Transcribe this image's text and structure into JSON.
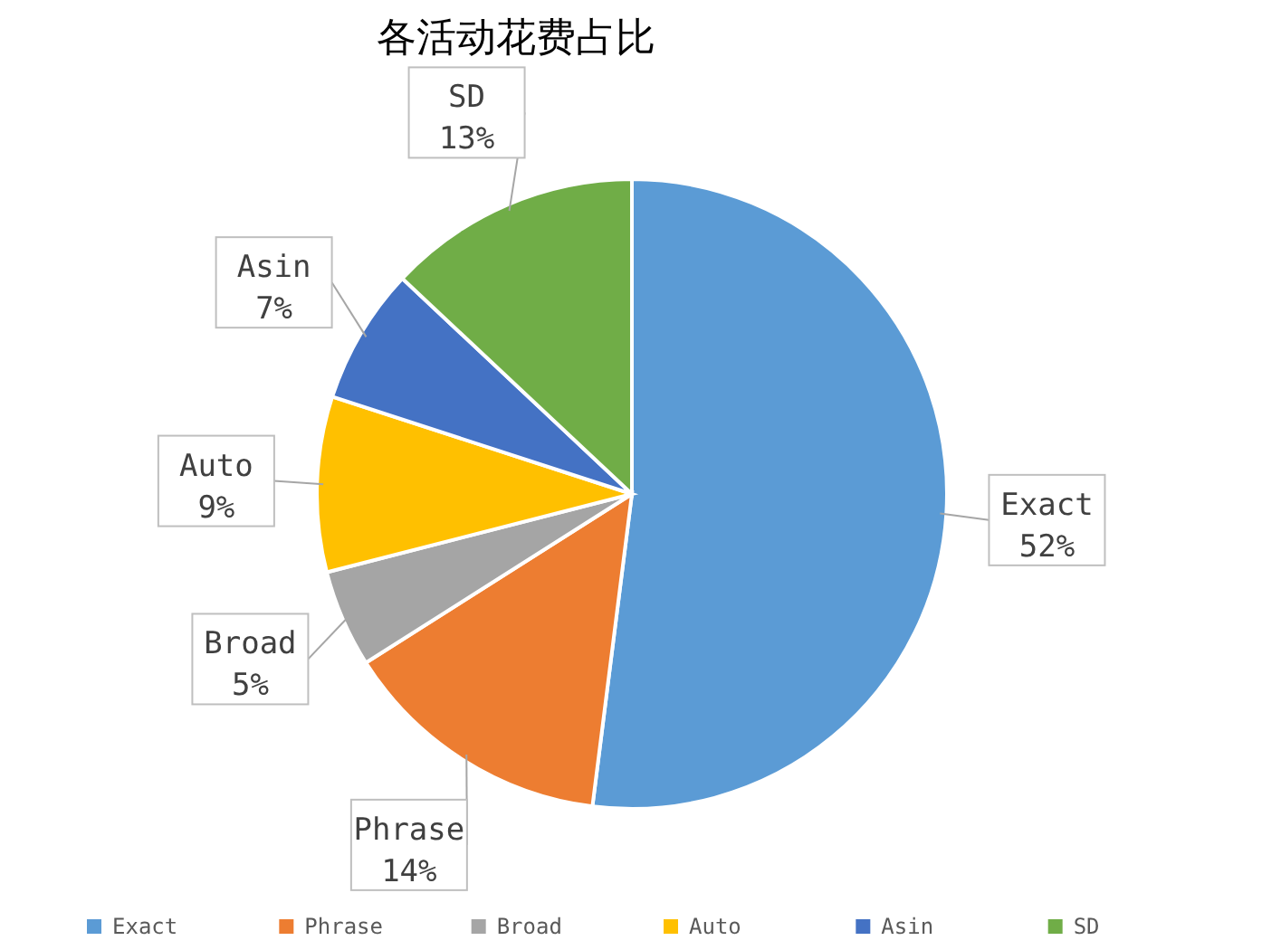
{
  "chart_data": {
    "type": "pie",
    "title": "各活动花费占比",
    "categories": [
      "Exact",
      "Phrase",
      "Broad",
      "Auto",
      "Asin",
      "SD"
    ],
    "values": [
      52,
      14,
      5,
      9,
      7,
      13
    ],
    "colors": [
      "#5b9bd5",
      "#ed7d31",
      "#a5a5a5",
      "#ffc000",
      "#4472c4",
      "#70ad47"
    ],
    "value_labels": [
      "52%",
      "14%",
      "5%",
      "9%",
      "7%",
      "13%"
    ],
    "legend": "bottom"
  }
}
